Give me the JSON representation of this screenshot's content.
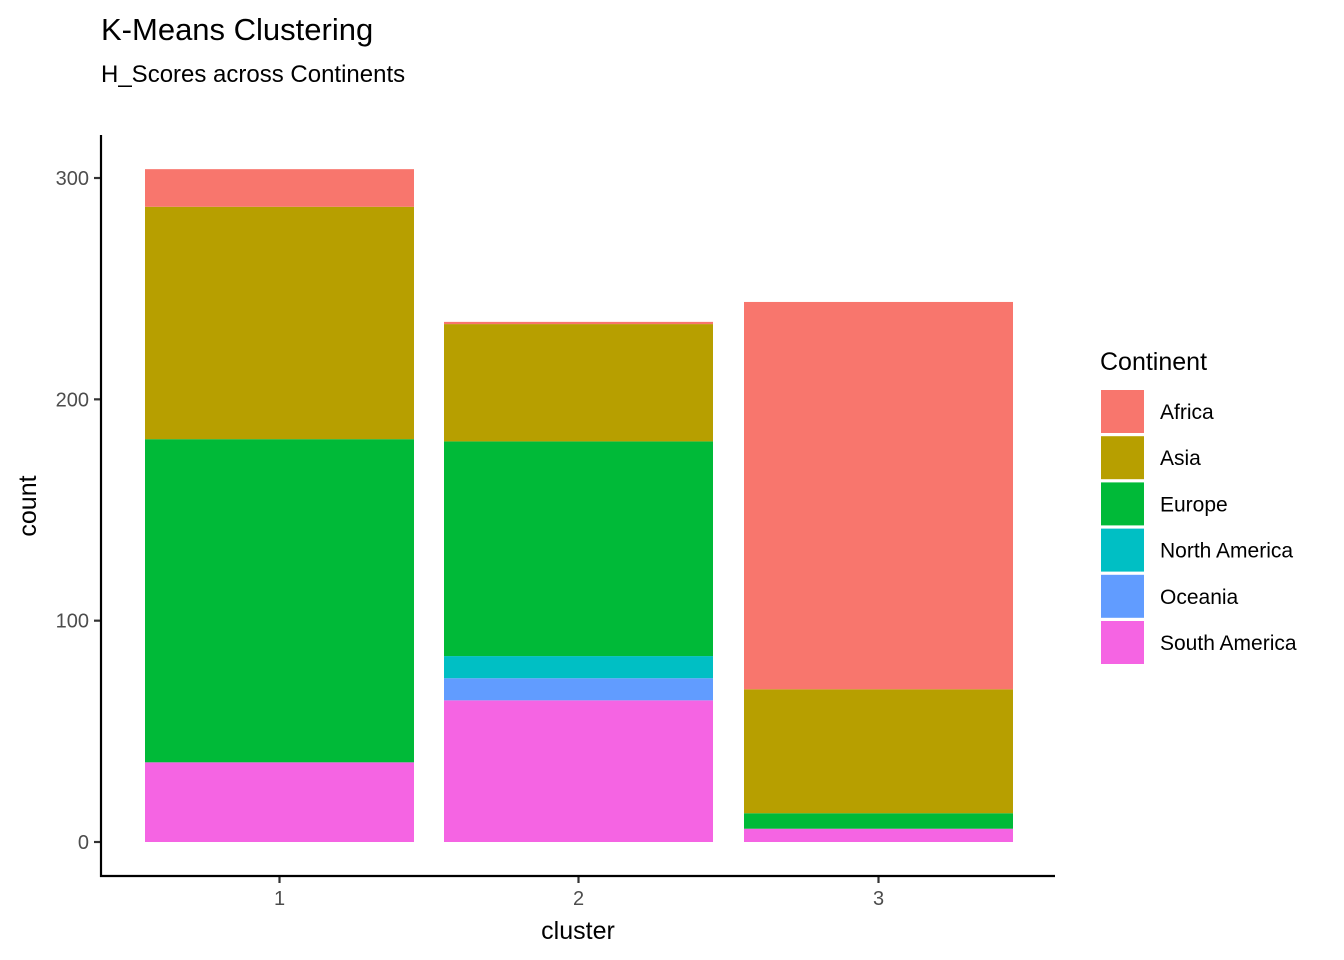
{
  "chart_data": {
    "type": "bar",
    "stacked": true,
    "title": "K-Means Clustering",
    "subtitle": "H_Scores across Continents",
    "xlabel": "cluster",
    "ylabel": "count",
    "categories": [
      "1",
      "2",
      "3"
    ],
    "ylim": [
      0,
      310
    ],
    "yticks": [
      0,
      100,
      200,
      300
    ],
    "grid": false,
    "legend": {
      "title": "Continent",
      "position": "right"
    },
    "series": [
      {
        "name": "Africa",
        "color": "#F8766D",
        "values": [
          17,
          1,
          175
        ]
      },
      {
        "name": "Asia",
        "color": "#B79F00",
        "values": [
          105,
          53,
          56
        ]
      },
      {
        "name": "Europe",
        "color": "#00BA38",
        "values": [
          146,
          97,
          7
        ]
      },
      {
        "name": "North America",
        "color": "#00BFC4",
        "values": [
          0,
          10,
          0
        ]
      },
      {
        "name": "Oceania",
        "color": "#619CFF",
        "values": [
          0,
          10,
          0
        ]
      },
      {
        "name": "South America",
        "color": "#F564E3",
        "values": [
          36,
          64,
          6
        ]
      }
    ]
  }
}
